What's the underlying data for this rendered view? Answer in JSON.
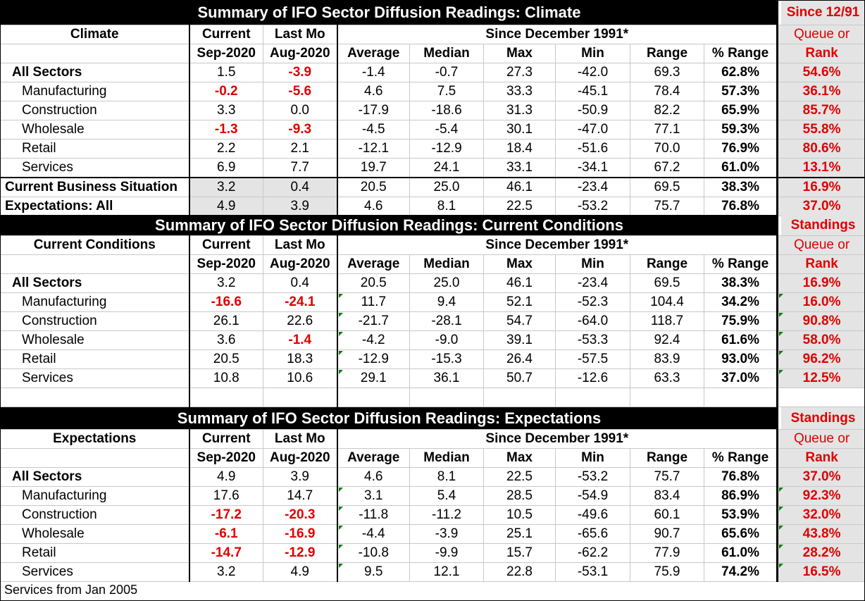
{
  "sections": {
    "climate": {
      "title": "Summary of IFO Sector Diffusion Readings: Climate",
      "badge": "Since 12/91",
      "label_header": "Climate",
      "col_current": "Current",
      "col_current_sub": "Sep-2020",
      "col_lastmo": "Last Mo",
      "col_lastmo_sub": "Aug-2020",
      "since": "Since December 1991*",
      "queue_header": "Queue or",
      "rank_header": "Rank",
      "stats": [
        "Average",
        "Median",
        "Max",
        "Min",
        "Range",
        "% Range"
      ],
      "rows": [
        {
          "label": "All Sectors",
          "current": "1.5",
          "last": "-3.9",
          "avg": "-1.4",
          "median": "-0.7",
          "max": "27.3",
          "min": "-42.0",
          "range": "69.3",
          "pct": "62.8%",
          "rank": "54.6%"
        },
        {
          "label": "Manufacturing",
          "current": "-0.2",
          "last": "-5.6",
          "avg": "4.6",
          "median": "7.5",
          "max": "33.3",
          "min": "-45.1",
          "range": "78.4",
          "pct": "57.3%",
          "rank": "36.1%"
        },
        {
          "label": "Construction",
          "current": "3.3",
          "last": "0.0",
          "avg": "-17.9",
          "median": "-18.6",
          "max": "31.3",
          "min": "-50.9",
          "range": "82.2",
          "pct": "65.9%",
          "rank": "85.7%"
        },
        {
          "label": "Wholesale",
          "current": "-1.3",
          "last": "-9.3",
          "avg": "-4.5",
          "median": "-5.4",
          "max": "30.1",
          "min": "-47.0",
          "range": "77.1",
          "pct": "59.3%",
          "rank": "55.8%"
        },
        {
          "label": "Retail",
          "current": "2.2",
          "last": "2.1",
          "avg": "-12.1",
          "median": "-12.9",
          "max": "18.4",
          "min": "-51.6",
          "range": "70.0",
          "pct": "76.9%",
          "rank": "80.6%"
        },
        {
          "label": "Services",
          "current": "6.9",
          "last": "7.7",
          "avg": "19.7",
          "median": "24.1",
          "max": "33.1",
          "min": "-34.1",
          "range": "67.2",
          "pct": "61.0%",
          "rank": "13.1%"
        }
      ],
      "extra_rows": [
        {
          "label": "Current Business Situation",
          "current": "3.2",
          "last": "0.4",
          "avg": "20.5",
          "median": "25.0",
          "max": "46.1",
          "min": "-23.4",
          "range": "69.5",
          "pct": "38.3%",
          "rank": "16.9%"
        },
        {
          "label": "Expectations: All",
          "current": "4.9",
          "last": "3.9",
          "avg": "4.6",
          "median": "8.1",
          "max": "22.5",
          "min": "-53.2",
          "range": "75.7",
          "pct": "76.8%",
          "rank": "37.0%"
        }
      ]
    },
    "current": {
      "title": "Summary of IFO Sector Diffusion Readings: Current Conditions",
      "badge": "Standings",
      "label_header": "Current Conditions",
      "col_current": "Current",
      "col_current_sub": "Sep-2020",
      "col_lastmo": "Last Mo",
      "col_lastmo_sub": "Aug-2020",
      "since": "Since December 1991*",
      "queue_header": "Queue or",
      "rank_header": "Rank",
      "stats": [
        "Average",
        "Median",
        "Max",
        "Min",
        "Range",
        "% Range"
      ],
      "rows": [
        {
          "label": "All Sectors",
          "current": "3.2",
          "last": "0.4",
          "avg": "20.5",
          "median": "25.0",
          "max": "46.1",
          "min": "-23.4",
          "range": "69.5",
          "pct": "38.3%",
          "rank": "16.9%"
        },
        {
          "label": "Manufacturing",
          "current": "-16.6",
          "last": "-24.1",
          "avg": "11.7",
          "median": "9.4",
          "max": "52.1",
          "min": "-52.3",
          "range": "104.4",
          "pct": "34.2%",
          "rank": "16.0%"
        },
        {
          "label": "Construction",
          "current": "26.1",
          "last": "22.6",
          "avg": "-21.7",
          "median": "-28.1",
          "max": "54.7",
          "min": "-64.0",
          "range": "118.7",
          "pct": "75.9%",
          "rank": "90.8%"
        },
        {
          "label": "Wholesale",
          "current": "3.6",
          "last": "-1.4",
          "avg": "-4.2",
          "median": "-9.0",
          "max": "39.1",
          "min": "-53.3",
          "range": "92.4",
          "pct": "61.6%",
          "rank": "58.0%"
        },
        {
          "label": "Retail",
          "current": "20.5",
          "last": "18.3",
          "avg": "-12.9",
          "median": "-15.3",
          "max": "26.4",
          "min": "-57.5",
          "range": "83.9",
          "pct": "93.0%",
          "rank": "96.2%"
        },
        {
          "label": "Services",
          "current": "10.8",
          "last": "10.6",
          "avg": "29.1",
          "median": "36.1",
          "max": "50.7",
          "min": "-12.6",
          "range": "63.3",
          "pct": "37.0%",
          "rank": "12.5%"
        }
      ]
    },
    "expectations": {
      "title": "Summary of IFO Sector Diffusion Readings: Expectations",
      "badge": "Standings",
      "label_header": "Expectations",
      "col_current": "Current",
      "col_current_sub": "Sep-2020",
      "col_lastmo": "Last Mo",
      "col_lastmo_sub": "Aug-2020",
      "since": "Since December 1991*",
      "queue_header": "Queue or",
      "rank_header": "Rank",
      "stats": [
        "Average",
        "Median",
        "Max",
        "Min",
        "Range",
        "% Range"
      ],
      "rows": [
        {
          "label": "All Sectors",
          "current": "4.9",
          "last": "3.9",
          "avg": "4.6",
          "median": "8.1",
          "max": "22.5",
          "min": "-53.2",
          "range": "75.7",
          "pct": "76.8%",
          "rank": "37.0%"
        },
        {
          "label": "Manufacturing",
          "current": "17.6",
          "last": "14.7",
          "avg": "3.1",
          "median": "5.4",
          "max": "28.5",
          "min": "-54.9",
          "range": "83.4",
          "pct": "86.9%",
          "rank": "92.3%"
        },
        {
          "label": "Construction",
          "current": "-17.2",
          "last": "-20.3",
          "avg": "-11.8",
          "median": "-11.2",
          "max": "10.5",
          "min": "-49.6",
          "range": "60.1",
          "pct": "53.9%",
          "rank": "32.0%"
        },
        {
          "label": "Wholesale",
          "current": "-6.1",
          "last": "-16.9",
          "avg": "-4.4",
          "median": "-3.9",
          "max": "25.1",
          "min": "-65.6",
          "range": "90.7",
          "pct": "65.6%",
          "rank": "43.8%"
        },
        {
          "label": "Retail",
          "current": "-14.7",
          "last": "-12.9",
          "avg": "-10.8",
          "median": "-9.9",
          "max": "15.7",
          "min": "-62.2",
          "range": "77.9",
          "pct": "61.0%",
          "rank": "28.2%"
        },
        {
          "label": "Services",
          "current": "3.2",
          "last": "4.9",
          "avg": "9.5",
          "median": "12.1",
          "max": "22.8",
          "min": "-53.1",
          "range": "75.9",
          "pct": "74.2%",
          "rank": "16.5%"
        }
      ]
    }
  },
  "footnote": "Services from Jan 2005",
  "colors": {
    "title_bg": "#000000",
    "negative": "#e00000",
    "rank_bg": "#e4e4e4",
    "marker": "#008000"
  }
}
